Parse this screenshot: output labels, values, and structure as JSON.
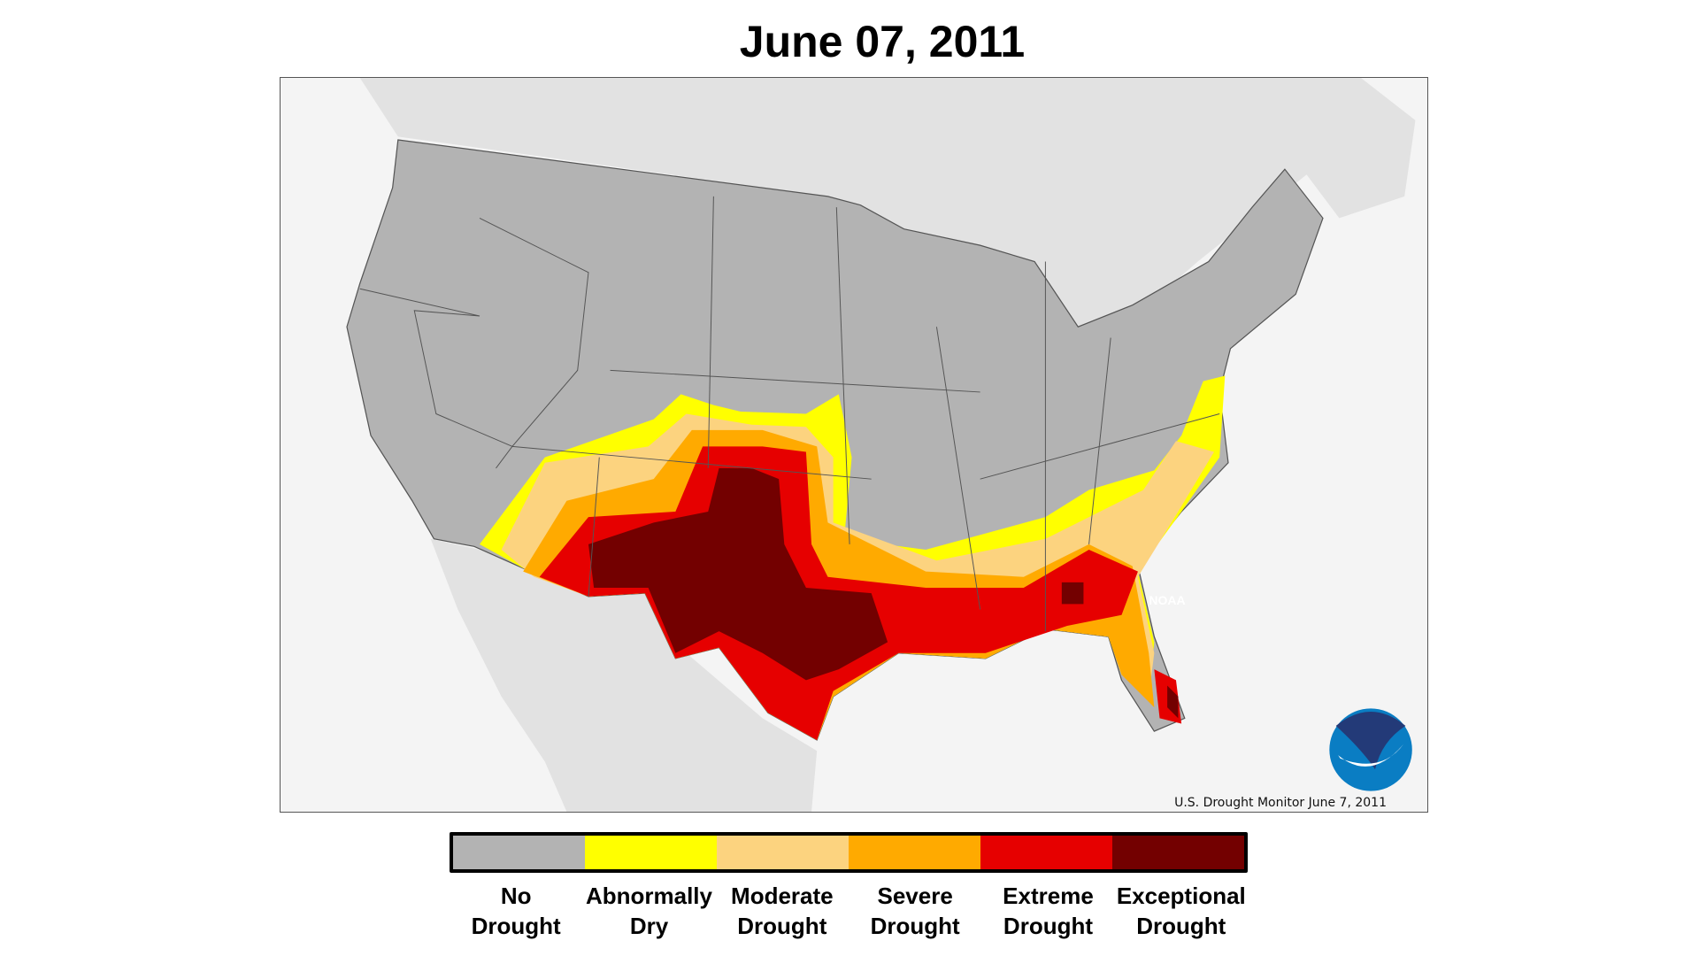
{
  "title": "June 07, 2011",
  "credit": "U.S. Drought Monitor June 7, 2011",
  "logo": {
    "text": "NOAA",
    "dark": "#233a78",
    "light": "#0a7dc3"
  },
  "map_colors": {
    "ocean": "#f4f4f4",
    "foreign_land": "#e2e2e2",
    "us_land": "#b3b3b3",
    "border": "#555555"
  },
  "legend": [
    {
      "line1": "No",
      "line2": "Drought",
      "color": "#b3b3b3"
    },
    {
      "line1": "Abnormally",
      "line2": "Dry",
      "color": "#ffff00"
    },
    {
      "line1": "Moderate",
      "line2": "Drought",
      "color": "#fcd37f"
    },
    {
      "line1": "Severe",
      "line2": "Drought",
      "color": "#ffaa00"
    },
    {
      "line1": "Extreme",
      "line2": "Drought",
      "color": "#e60000"
    },
    {
      "line1": "Exceptional",
      "line2": "Drought",
      "color": "#730000"
    }
  ]
}
